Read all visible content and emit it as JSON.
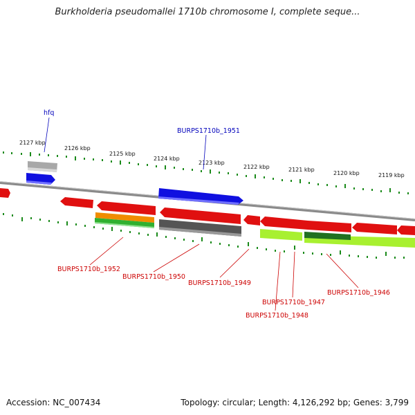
{
  "title": "Burkholderia pseudomallei 1710b chromosome I, complete seque...",
  "accession_label": "Accession: NC_007434",
  "summary_label": "Topology: circular; Length: 4,126,292 bp; Genes: 3,799",
  "colors": {
    "gene_red": "#e01010",
    "gene_blue": "#1010e0",
    "gene_gray": "#a8a8a8",
    "gene_dark": "#555555",
    "gene_orange": "#f08c00",
    "gene_green": "#30b030",
    "gene_lime": "#a8f030",
    "gene_darkgreen": "#207020",
    "backbone": "#8a8a8a",
    "ticks": "#1a8a1a"
  },
  "ticks": [
    {
      "label": "2127 kbp"
    },
    {
      "label": "2126 kbp"
    },
    {
      "label": "2125 kbp"
    },
    {
      "label": "2124 kbp"
    },
    {
      "label": "2123 kbp"
    },
    {
      "label": "2122 kbp"
    },
    {
      "label": "2121 kbp"
    },
    {
      "label": "2120 kbp"
    },
    {
      "label": "2119 kbp"
    }
  ],
  "genes_top": [
    {
      "label": "hfq"
    },
    {
      "label": "BURPS1710b_1951"
    }
  ],
  "genes_bottom": [
    {
      "label": "BURPS1710b_1952"
    },
    {
      "label": "BURPS1710b_1950"
    },
    {
      "label": "BURPS1710b_1949"
    },
    {
      "label": "BURPS1710b_1947"
    },
    {
      "label": "BURPS1710b_1948"
    },
    {
      "label": "BURPS1710b_1946"
    }
  ]
}
